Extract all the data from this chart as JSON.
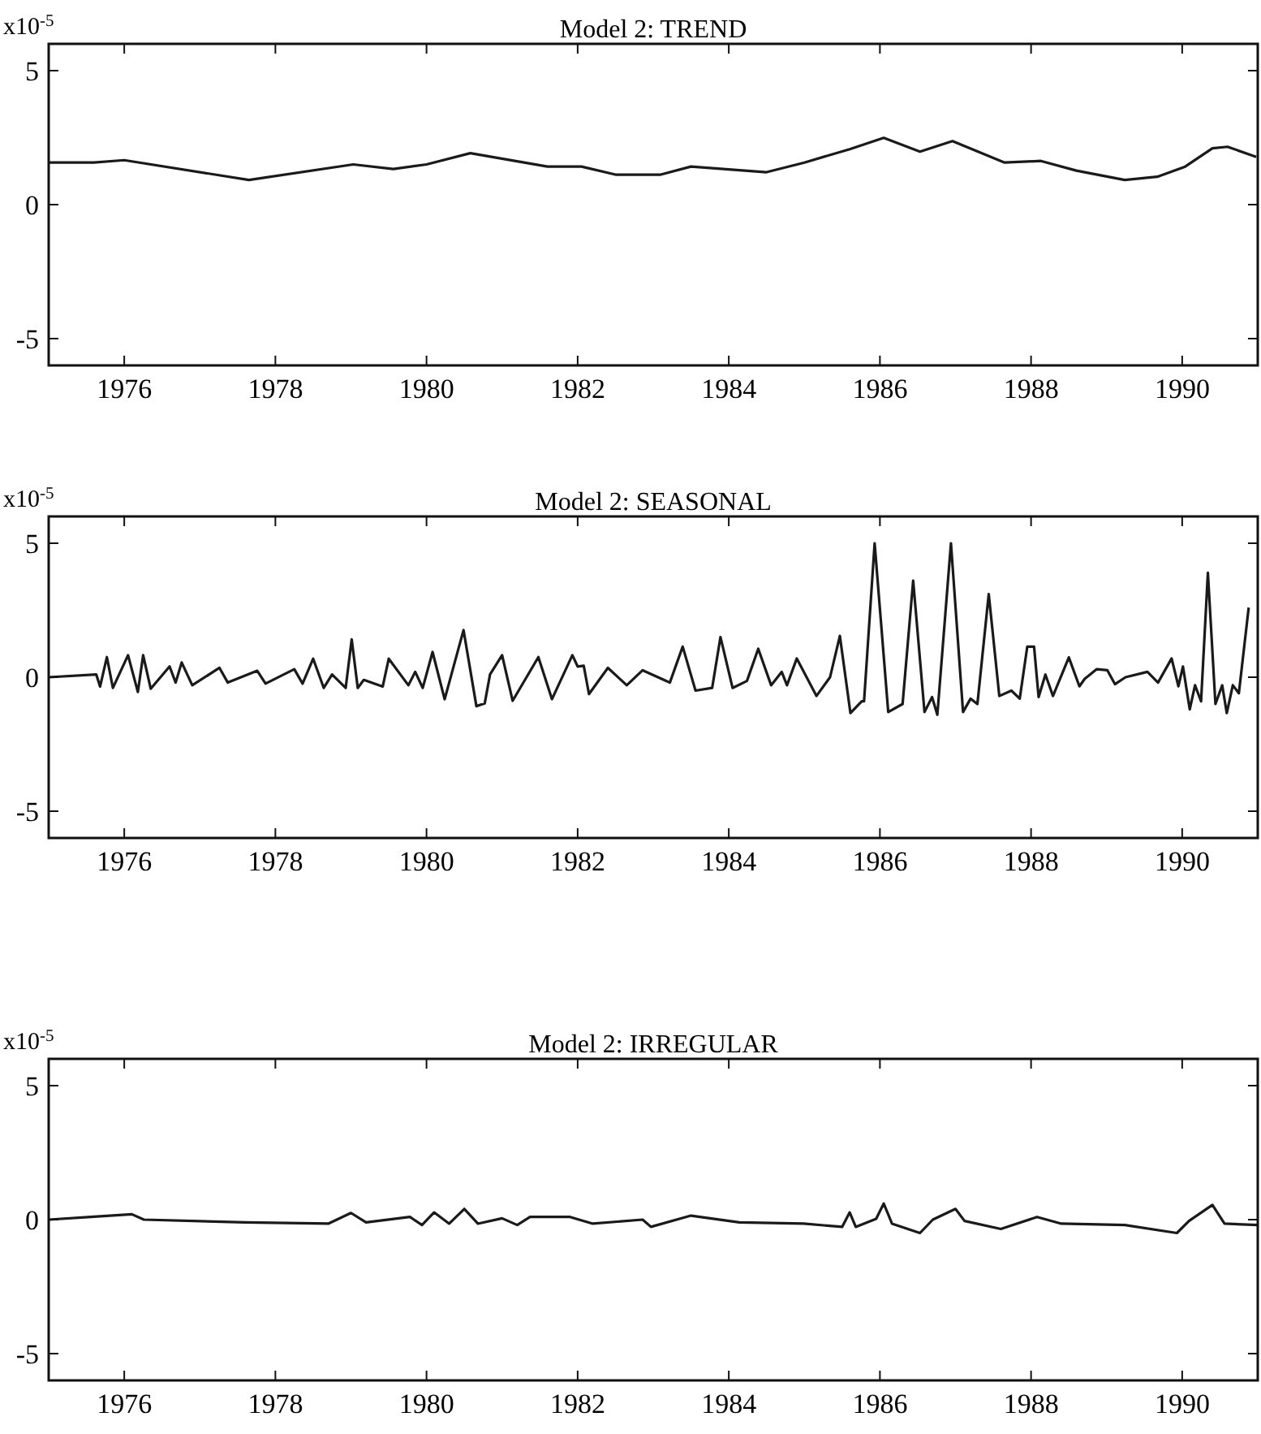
{
  "chart_data": [
    {
      "type": "line",
      "title": "Model 2: TREND",
      "ylabel": "x10$^{-5}$",
      "xlim": [
        1975,
        1991
      ],
      "ylim": [
        -6,
        6
      ],
      "xticks": [
        1976,
        1978,
        1980,
        1982,
        1984,
        1986,
        1988,
        1990
      ],
      "yticks": [
        -5,
        0,
        5
      ],
      "grid": false,
      "marker": "none",
      "line_style": "solid",
      "series": [
        {
          "color": "#1a1a1a",
          "x": [
            1975.0,
            1975.6,
            1976.0,
            1977.65,
            1979.03,
            1979.56,
            1980.0,
            1980.58,
            1981.6,
            1982.05,
            1982.5,
            1983.1,
            1983.5,
            1984.5,
            1985.0,
            1985.6,
            1986.05,
            1986.53,
            1986.96,
            1987.65,
            1988.13,
            1988.6,
            1989.24,
            1989.67,
            1990.04,
            1990.4,
            1990.6,
            1990.98
          ],
          "values": [
            1.57,
            1.57,
            1.66,
            0.92,
            1.5,
            1.33,
            1.5,
            1.92,
            1.42,
            1.42,
            1.12,
            1.12,
            1.42,
            1.21,
            1.57,
            2.07,
            2.49,
            1.98,
            2.37,
            1.57,
            1.63,
            1.27,
            0.92,
            1.04,
            1.42,
            2.1,
            2.16,
            1.78
          ]
        }
      ]
    },
    {
      "type": "line",
      "title": "Model 2: SEASONAL",
      "ylabel": "x10$^{-5}$",
      "xlim": [
        1975,
        1991
      ],
      "ylim": [
        -6,
        6
      ],
      "xticks": [
        1976,
        1978,
        1980,
        1982,
        1984,
        1986,
        1988,
        1990
      ],
      "yticks": [
        -5,
        0,
        5
      ],
      "grid": false,
      "marker": "none",
      "line_style": "solid",
      "series": [
        {
          "color": "#1a1a1a",
          "x": [
            1975.0,
            1975.63,
            1975.68,
            1975.77,
            1975.85,
            1976.05,
            1976.18,
            1976.25,
            1976.35,
            1976.6,
            1976.68,
            1976.76,
            1976.9,
            1977.26,
            1977.37,
            1977.76,
            1977.87,
            1978.25,
            1978.36,
            1978.5,
            1978.64,
            1978.75,
            1978.93,
            1979.01,
            1979.09,
            1979.17,
            1979.42,
            1979.5,
            1979.76,
            1979.85,
            1979.95,
            1980.08,
            1980.24,
            1980.49,
            1980.66,
            1980.77,
            1980.84,
            1981.0,
            1981.14,
            1981.48,
            1981.66,
            1981.93,
            1982.0,
            1982.08,
            1982.15,
            1982.4,
            1982.65,
            1982.86,
            1983.14,
            1983.22,
            1983.39,
            1983.56,
            1983.78,
            1983.89,
            1984.05,
            1984.24,
            1984.39,
            1984.56,
            1984.7,
            1984.77,
            1984.9,
            1985.16,
            1985.34,
            1985.47,
            1985.61,
            1985.76,
            1985.79,
            1985.93,
            1986.11,
            1986.3,
            1986.44,
            1986.59,
            1986.69,
            1986.76,
            1986.94,
            1987.1,
            1987.2,
            1987.29,
            1987.44,
            1987.58,
            1987.74,
            1987.85,
            1987.95,
            1988.04,
            1988.1,
            1988.19,
            1988.29,
            1988.5,
            1988.64,
            1988.71,
            1988.87,
            1989.01,
            1989.11,
            1989.25,
            1989.54,
            1989.68,
            1989.86,
            1989.95,
            1990.01,
            1990.1,
            1990.17,
            1990.25,
            1990.34,
            1990.44,
            1990.53,
            1990.59,
            1990.67,
            1990.75,
            1990.88
          ],
          "values": [
            0,
            0.1,
            -0.35,
            0.75,
            -0.4,
            0.82,
            -0.55,
            0.82,
            -0.43,
            0.4,
            -0.2,
            0.55,
            -0.3,
            0.35,
            -0.2,
            0.24,
            -0.24,
            0.3,
            -0.24,
            0.69,
            -0.4,
            0.1,
            -0.4,
            1.41,
            -0.4,
            -0.1,
            -0.35,
            0.69,
            -0.3,
            0.2,
            -0.4,
            0.94,
            -0.82,
            1.76,
            -1.08,
            -0.98,
            0.1,
            0.82,
            -0.88,
            0.75,
            -0.82,
            0.82,
            0.4,
            0.43,
            -0.63,
            0.35,
            -0.3,
            0.26,
            -0.1,
            -0.2,
            1.14,
            -0.5,
            -0.4,
            1.5,
            -0.4,
            -0.14,
            1.06,
            -0.3,
            0.2,
            -0.3,
            0.7,
            -0.7,
            0,
            1.54,
            -1.34,
            -0.9,
            -0.9,
            5.0,
            -1.3,
            -1.0,
            3.6,
            -1.3,
            -0.74,
            -1.4,
            5.0,
            -1.3,
            -0.8,
            -1.0,
            3.1,
            -0.7,
            -0.5,
            -0.8,
            1.14,
            1.14,
            -0.74,
            0.1,
            -0.7,
            0.74,
            -0.34,
            -0.06,
            0.3,
            0.26,
            -0.26,
            0,
            0.2,
            -0.2,
            0.7,
            -0.34,
            0.4,
            -1.2,
            -0.3,
            -0.9,
            3.9,
            -1.0,
            -0.3,
            -1.34,
            -0.3,
            -0.6,
            2.6
          ]
        }
      ]
    },
    {
      "type": "line",
      "title": "Model 2: IRREGULAR",
      "ylabel": "x10$^{-5}$",
      "xlim": [
        1975,
        1991
      ],
      "ylim": [
        -6,
        6
      ],
      "xticks": [
        1976,
        1978,
        1980,
        1982,
        1984,
        1986,
        1988,
        1990
      ],
      "yticks": [
        -5,
        0,
        5
      ],
      "grid": false,
      "marker": "none",
      "line_style": "solid",
      "series": [
        {
          "color": "#1a1a1a",
          "x": [
            1975.0,
            1975.56,
            1976.1,
            1976.26,
            1977.6,
            1978.7,
            1979.0,
            1979.2,
            1979.78,
            1979.94,
            1980.1,
            1980.3,
            1980.5,
            1980.68,
            1981.0,
            1981.2,
            1981.37,
            1981.9,
            1982.2,
            1982.86,
            1982.97,
            1983.5,
            1984.14,
            1984.99,
            1985.5,
            1985.6,
            1985.68,
            1985.95,
            1986.05,
            1986.16,
            1986.53,
            1986.7,
            1987.0,
            1987.12,
            1987.6,
            1988.08,
            1988.4,
            1989.24,
            1989.93,
            1990.09,
            1990.4,
            1990.56,
            1991.0
          ],
          "values": [
            0,
            0.1,
            0.2,
            0,
            -0.1,
            -0.15,
            0.25,
            -0.1,
            0.1,
            -0.2,
            0.27,
            -0.15,
            0.4,
            -0.15,
            0.05,
            -0.2,
            0.1,
            0.1,
            -0.15,
            0,
            -0.27,
            0.15,
            -0.1,
            -0.15,
            -0.27,
            0.27,
            -0.27,
            0.03,
            0.6,
            -0.15,
            -0.5,
            0,
            0.4,
            -0.05,
            -0.35,
            0.1,
            -0.15,
            -0.2,
            -0.5,
            -0.05,
            0.55,
            -0.15,
            -0.2
          ]
        }
      ]
    }
  ]
}
